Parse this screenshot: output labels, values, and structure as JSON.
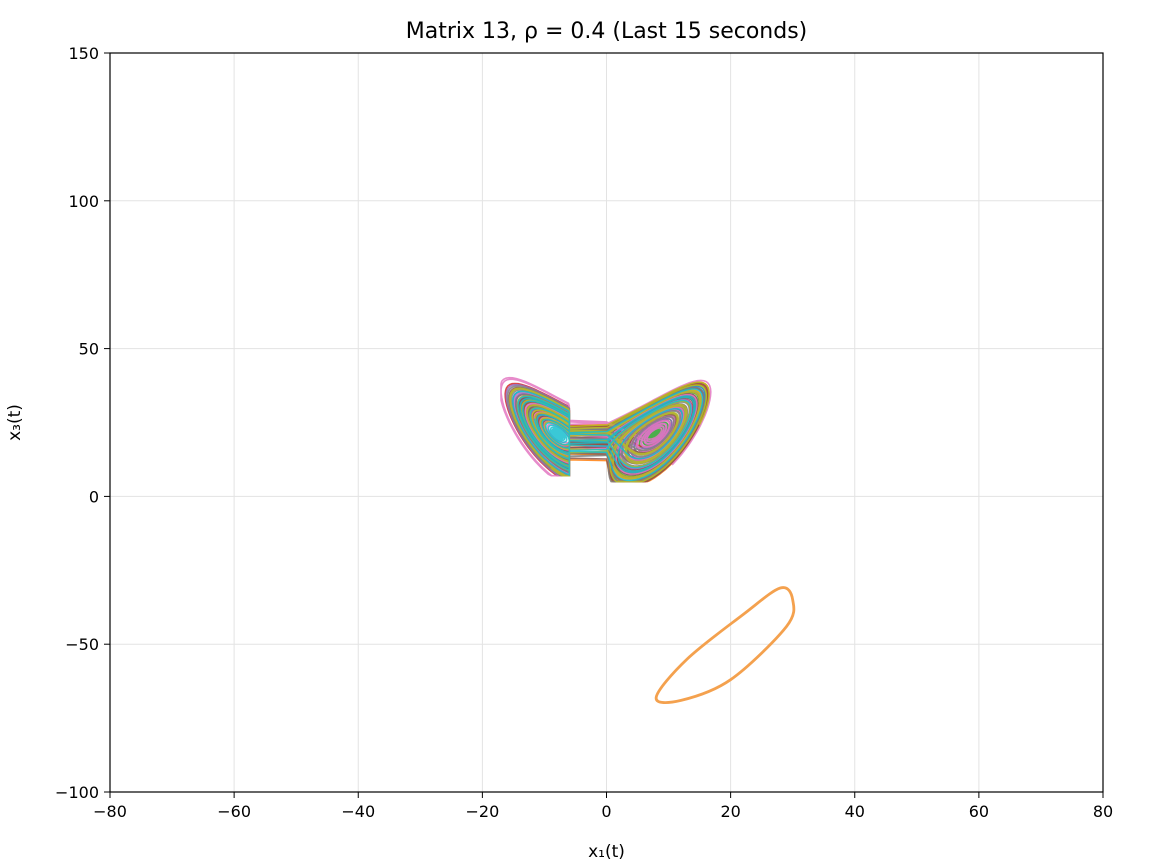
{
  "chart_data": {
    "type": "line",
    "title": "Matrix 13, ρ = 0.4 (Last 15 seconds)",
    "xlabel": "x₁(t)",
    "ylabel": "x₃(t)",
    "xlim": [
      -80,
      80
    ],
    "ylim": [
      -100,
      150
    ],
    "xticks": [
      -80,
      -60,
      -40,
      -20,
      0,
      20,
      40,
      60,
      80
    ],
    "yticks": [
      -100,
      -50,
      0,
      50,
      100,
      150
    ],
    "xtick_labels": [
      "−80",
      "−60",
      "−40",
      "−20",
      "0",
      "20",
      "40",
      "60",
      "80"
    ],
    "ytick_labels": [
      "−100",
      "−50",
      "0",
      "50",
      "100",
      "150"
    ],
    "grid": true,
    "legend": "none",
    "series_colors": [
      "#1f77b4",
      "#ff7f0e",
      "#2ca02c",
      "#d62728",
      "#9467bd",
      "#8c564b",
      "#e377c2",
      "#7f7f7f",
      "#bcbd22",
      "#17becf"
    ],
    "attractor_envelope": {
      "left_wing": {
        "x": [
          -17,
          -6
        ],
        "y": [
          7,
          45
        ],
        "inner_hole_center": [
          -9,
          28
        ]
      },
      "right_wing": {
        "x": [
          -1,
          18
        ],
        "y": [
          5,
          45
        ],
        "inner_hole_center": [
          8,
          27
        ]
      }
    },
    "orange_orbit": {
      "color": "#f4a14e",
      "points": [
        {
          "x": 8,
          "y": -68
        },
        {
          "x": 12,
          "y": -69
        },
        {
          "x": 20,
          "y": -62
        },
        {
          "x": 29,
          "y": -44
        },
        {
          "x": 30,
          "y": -35
        },
        {
          "x": 28,
          "y": -31
        },
        {
          "x": 22,
          "y": -40
        },
        {
          "x": 13,
          "y": -55
        }
      ]
    }
  }
}
